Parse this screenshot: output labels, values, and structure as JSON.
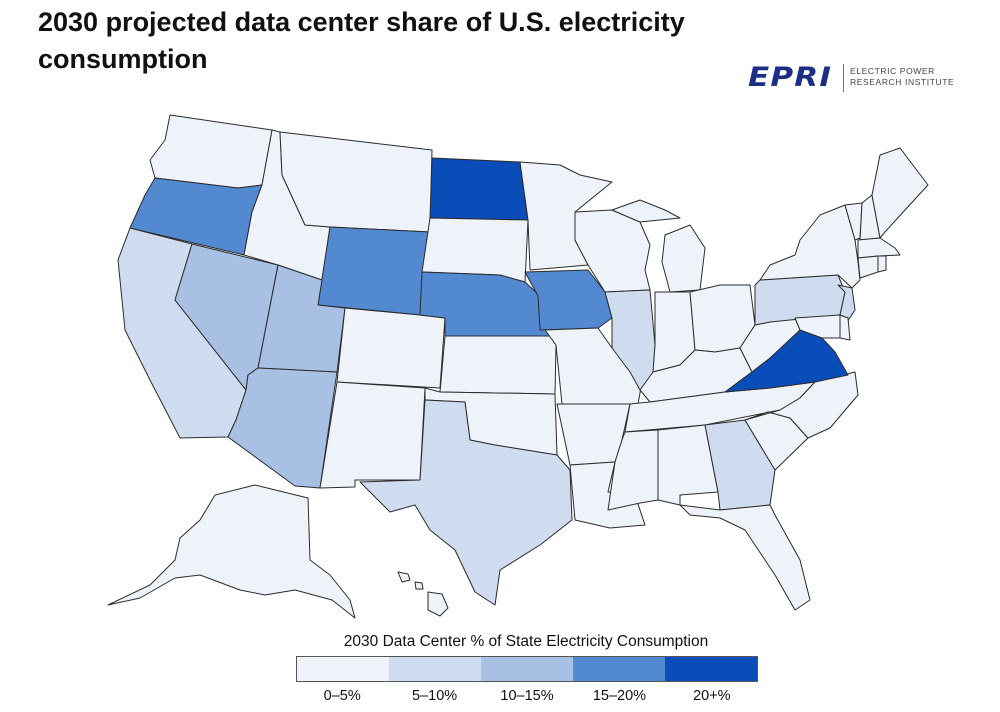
{
  "title": "2030 projected data center share of U.S. electricity consumption",
  "logo": {
    "mark": "EPRI",
    "line1": "ELECTRIC POWER",
    "line2": "RESEARCH INSTITUTE",
    "color": "#1c2f86"
  },
  "legend": {
    "title": "2030 Data Center % of State Electricity Consumption",
    "bins": [
      {
        "label": "0–5%",
        "color": "#eef3fa"
      },
      {
        "label": "5–10%",
        "color": "#cfdcef"
      },
      {
        "label": "10–15%",
        "color": "#a8c0e3"
      },
      {
        "label": "15–20%",
        "color": "#5289d0"
      },
      {
        "label": "20+%",
        "color": "#0a4db8"
      }
    ]
  },
  "map_data": {
    "Oregon": "15–20%",
    "Wyoming": "15–20%",
    "Nebraska": "15–20%",
    "Iowa": "15–20%",
    "North Dakota": "20+%",
    "Virginia": "20+%",
    "Nevada": "10–15%",
    "Utah": "10–15%",
    "Arizona": "10–15%",
    "California": "5–10%",
    "Texas": "5–10%",
    "Illinois": "5–10%",
    "Georgia": "5–10%",
    "Pennsylvania": "5–10%",
    "New Jersey": "5–10%",
    "Washington": "0–5%",
    "Idaho": "0–5%",
    "Montana": "0–5%",
    "Colorado": "0–5%",
    "New Mexico": "0–5%",
    "South Dakota": "0–5%",
    "Kansas": "0–5%",
    "Oklahoma": "0–5%",
    "Minnesota": "0–5%",
    "Missouri": "0–5%",
    "Arkansas": "0–5%",
    "Louisiana": "0–5%",
    "Wisconsin": "0–5%",
    "Michigan": "0–5%",
    "Indiana": "0–5%",
    "Ohio": "0–5%",
    "Kentucky": "0–5%",
    "Tennessee": "0–5%",
    "Mississippi": "0–5%",
    "Alabama": "0–5%",
    "Florida": "0–5%",
    "South Carolina": "0–5%",
    "North Carolina": "0–5%",
    "West Virginia": "0–5%",
    "Maryland": "0–5%",
    "Delaware": "0–5%",
    "New York": "0–5%",
    "Vermont": "0–5%",
    "New Hampshire": "0–5%",
    "Maine": "0–5%",
    "Massachusetts": "0–5%",
    "Connecticut": "0–5%",
    "Rhode Island": "0–5%",
    "Alaska": "0–5%",
    "Hawaii": "0–5%"
  }
}
